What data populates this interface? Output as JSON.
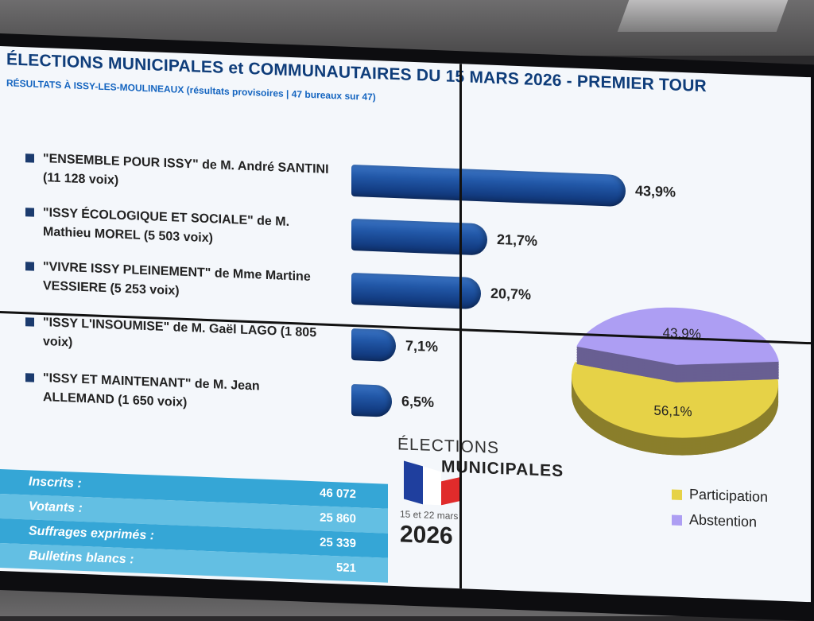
{
  "header": {
    "title": "ÉLECTIONS MUNICIPALES et COMMUNAUTAIRES DU 15 MARS 2026 - PREMIER TOUR",
    "subtitle": "RÉSULTATS À ISSY-LES-MOULINEAUX (résultats provisoires | 47 bureaux sur 47)"
  },
  "chart_data": [
    {
      "type": "bar",
      "orientation": "horizontal",
      "categories": [
        "\"ENSEMBLE POUR ISSY\" de M. André SANTINI (11 128 voix)",
        "\"ISSY ÉCOLOGIQUE ET SOCIALE\" de M. Mathieu MOREL (5 503 voix)",
        "\"VIVRE ISSY PLEINEMENT\" de Mme Martine VESSIERE (5 253 voix)",
        "\"ISSY L'INSOUMISE\" de M. Gaël LAGO (1 805 voix)",
        "\"ISSY ET MAINTENANT\" de M. Jean ALLEMAND (1 650 voix)"
      ],
      "values": [
        43.9,
        21.7,
        20.7,
        7.1,
        6.5
      ],
      "value_labels": [
        "43,9%",
        "21,7%",
        "20,7%",
        "7,1%",
        "6,5%"
      ],
      "bar_color": "#1f57a8"
    },
    {
      "type": "pie",
      "labels": [
        "Participation",
        "Abstention"
      ],
      "values": [
        56.1,
        43.9
      ],
      "value_labels": [
        "56,1%",
        "43,9%"
      ],
      "colors": [
        "#e6d247",
        "#ad9ef3"
      ],
      "legend_position": "bottom-right"
    }
  ],
  "stats": [
    {
      "label": "Inscrits :",
      "value": "46 072"
    },
    {
      "label": "Votants :",
      "value": "25 860"
    },
    {
      "label": "Suffrages exprimés :",
      "value": "25 339"
    },
    {
      "label": "Bulletins blancs :",
      "value": "521"
    }
  ],
  "logo": {
    "top": "ÉLECTIONS",
    "bottom": "MUNICIPALES",
    "dates": "15 et 22 mars",
    "year": "2026",
    "flag_colors": [
      "#1f3f9e",
      "#ffffff",
      "#e02b2b"
    ]
  }
}
